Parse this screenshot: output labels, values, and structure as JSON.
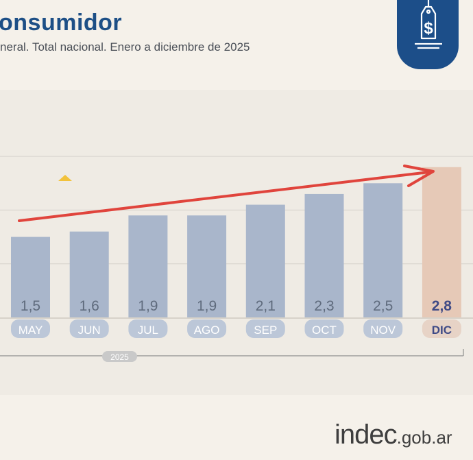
{
  "header": {
    "title": "onsumidor",
    "subtitle": "neral. Total nacional. Enero a diciembre de 2025"
  },
  "icons": {
    "badge": "price-tag-dollar-icon"
  },
  "chart_data": {
    "type": "bar",
    "categories": [
      "MAY",
      "JUN",
      "JUL",
      "AGO",
      "SEP",
      "OCT",
      "NOV",
      "DIC"
    ],
    "values": [
      1.5,
      1.6,
      1.9,
      1.9,
      2.1,
      2.3,
      2.5,
      2.8
    ],
    "value_labels": [
      "1,5",
      "1,6",
      "1,9",
      "1,9",
      "2,1",
      "2,3",
      "2,5",
      "2,8"
    ],
    "year_label": "2025",
    "ylim": [
      0,
      3.5
    ],
    "grid": true,
    "highlight_category": "DIC",
    "colors": {
      "bar": "#a9b6cb",
      "highlight_bar": "#e6c9b7",
      "value_text": "#5f6b7d",
      "highlight_value_text": "#3f4a86",
      "category_pill": "#bcc7d8",
      "category_text": "#ffffff",
      "highlight_pill": "#e7d3c6",
      "highlight_category_text": "#3f4a86",
      "trend_arrow": "#e0443c",
      "year_pill": "#c9c9c9",
      "gridline": "#dcd8d1"
    }
  },
  "footer": {
    "logo_main": "indec",
    "logo_tld": ".gob.ar"
  }
}
